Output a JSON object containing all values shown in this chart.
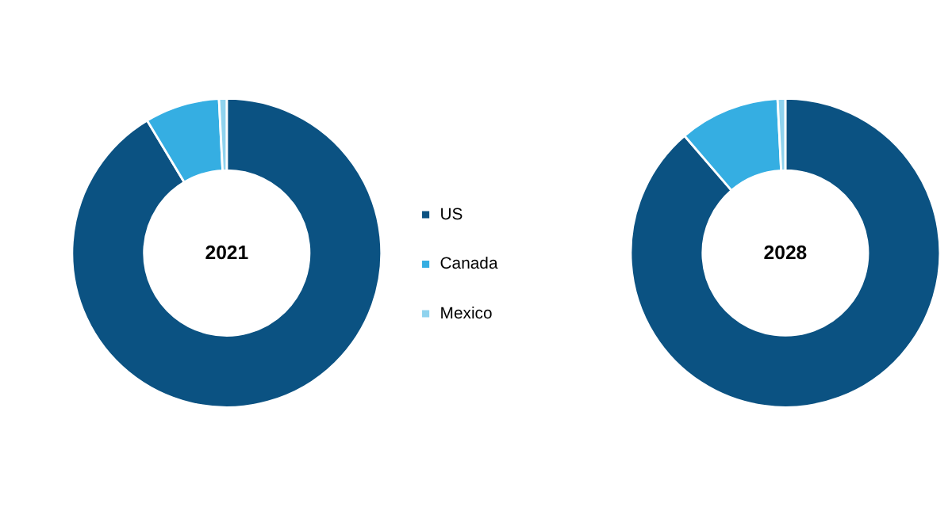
{
  "chart_data": {
    "type": "donut",
    "categories": [
      "US",
      "Canada",
      "Mexico"
    ],
    "colors": [
      "#0b5282",
      "#35aee2",
      "#8fd3ee"
    ],
    "legend": "center",
    "series": [
      {
        "name": "2021",
        "values": [
          91.4,
          7.8,
          0.8
        ]
      },
      {
        "name": "2028",
        "values": [
          88.7,
          10.5,
          0.8
        ]
      }
    ]
  }
}
